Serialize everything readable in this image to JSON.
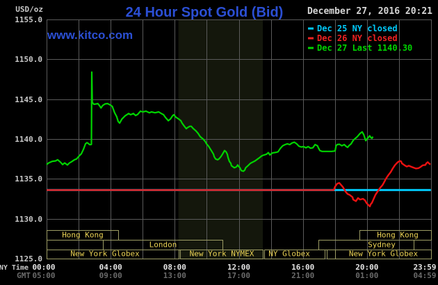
{
  "header": {
    "units_label": "USD/oz",
    "title": "24 Hour Spot Gold (Bid)",
    "datetime": "December 27, 2016 20:21",
    "watermark": "www.kitco.com"
  },
  "legend": [
    {
      "label": "Dec 25 NY closed",
      "color": "#00c8f8"
    },
    {
      "label": "Dec 26 NY closed",
      "color": "#ee2222"
    },
    {
      "label": "Dec 27 Last 1140.30",
      "color": "#00d400"
    }
  ],
  "colors": {
    "background": "#000000",
    "grid": "#5a5a5a",
    "band": "#14170c",
    "session_border": "#9c9c64",
    "session_text": "#ead255",
    "y_label": "#c8c8c8",
    "x_label_ny": "#e4e4e4",
    "x_label_gmt": "#6a6a6a",
    "title": "#2b4fd4",
    "datetime": "#d6d6d6",
    "watermark": "#2b4fd4"
  },
  "axes": {
    "x_row1_label": "NY Time",
    "x_row2_label": "GMT",
    "x_row1_ticks": [
      {
        "label": "00:00",
        "hour": 0
      },
      {
        "label": "04:00",
        "hour": 4
      },
      {
        "label": "08:00",
        "hour": 8
      },
      {
        "label": "12:00",
        "hour": 12
      },
      {
        "label": "16:00",
        "hour": 16
      },
      {
        "label": "20:00",
        "hour": 20
      },
      {
        "label": "23:59",
        "hour": 23.98
      }
    ],
    "x_row2_ticks": [
      {
        "label": "05:00",
        "hour": 0
      },
      {
        "label": "09:00",
        "hour": 4
      },
      {
        "label": "13:00",
        "hour": 8
      },
      {
        "label": "17:00",
        "hour": 12
      },
      {
        "label": "21:00",
        "hour": 16
      },
      {
        "label": "01:00",
        "hour": 20
      },
      {
        "label": "04:59",
        "hour": 23.98
      }
    ],
    "y_ticks": [
      "1155.0",
      "1150.0",
      "1145.0",
      "1140.0",
      "1135.0",
      "1130.0",
      "1125.0"
    ]
  },
  "sessions": {
    "rows": [
      {
        "boxes": [
          {
            "from_hour": 0,
            "to_hour": 4.47,
            "label": "Hong Kong"
          },
          {
            "from_hour": 19.53,
            "to_hour": 24,
            "label": "Hong Kong",
            "label_hour": 21.92
          }
        ]
      },
      {
        "boxes": [
          {
            "from_hour": 0,
            "to_hour": 3.52,
            "label": ""
          },
          {
            "from_hour": 3.52,
            "to_hour": 10.98,
            "label": "London"
          },
          {
            "from_hour": 16.97,
            "to_hour": 22.91,
            "label": "Sydney",
            "label_hour": 20.92
          }
        ]
      },
      {
        "boxes": [
          {
            "from_hour": 0,
            "to_hour": 8.25,
            "label": "New York Globex",
            "label_hour": 3.65
          },
          {
            "from_hour": 8.33,
            "to_hour": 13.5,
            "label": "New York NYMEX"
          },
          {
            "from_hour": 13.58,
            "to_hour": 17.36,
            "label": "NY Globex",
            "label_hour": 15.15
          },
          {
            "from_hour": 17.49,
            "to_hour": 18.01,
            "label": ""
          },
          {
            "from_hour": 18.01,
            "to_hour": 24,
            "label": "New York Globex"
          }
        ]
      }
    ]
  },
  "chart_data": {
    "type": "line",
    "title": "24 Hour Spot Gold (Bid)",
    "xlabel": "NY Time (00:00 - 23:59) / GMT (05:00 - 04:59)",
    "ylabel": "USD/oz",
    "ylim": [
      1125,
      1155
    ],
    "xlim_hours": [
      0,
      24
    ],
    "grid": true,
    "legend_position": "top-right",
    "shaded_region": {
      "from_hour": 8.23,
      "to_hour": 13.5,
      "color": "#14170c",
      "name": "New York NYMEX session"
    },
    "series": [
      {
        "name": "Dec 25 NY closed",
        "color": "#00c8f8",
        "width": 3,
        "points": [
          [
            0,
            1133.6
          ],
          [
            23.99,
            1133.6
          ]
        ]
      },
      {
        "name": "Dec 26 NY closed",
        "color": "#ee1111",
        "width": 2.4,
        "points": [
          [
            0,
            1133.6
          ],
          [
            17.93,
            1133.6
          ],
          [
            18,
            1134
          ],
          [
            18.14,
            1134.4
          ],
          [
            18.27,
            1134.5
          ],
          [
            18.36,
            1134.3
          ],
          [
            18.49,
            1134
          ],
          [
            18.58,
            1133.7
          ],
          [
            18.66,
            1133.4
          ],
          [
            18.79,
            1133.1
          ],
          [
            18.92,
            1133
          ],
          [
            19.1,
            1132.7
          ],
          [
            19.14,
            1132.4
          ],
          [
            19.31,
            1132.2
          ],
          [
            19.44,
            1132.6
          ],
          [
            19.57,
            1132.4
          ],
          [
            19.75,
            1132.5
          ],
          [
            19.88,
            1132.3
          ],
          [
            19.96,
            1132
          ],
          [
            20.1,
            1131.7
          ],
          [
            20.18,
            1131.55
          ],
          [
            20.23,
            1131.8
          ],
          [
            20.31,
            1132
          ],
          [
            20.44,
            1132.6
          ],
          [
            20.53,
            1133
          ],
          [
            20.66,
            1133.4
          ],
          [
            20.83,
            1133.9
          ],
          [
            20.96,
            1134.2
          ],
          [
            21.05,
            1134.5
          ],
          [
            21.18,
            1135
          ],
          [
            21.31,
            1135.4
          ],
          [
            21.48,
            1135.85
          ],
          [
            21.61,
            1136.3
          ],
          [
            21.74,
            1136.7
          ],
          [
            21.83,
            1136.9
          ],
          [
            21.92,
            1137.1
          ],
          [
            22.05,
            1137.25
          ],
          [
            22.13,
            1137.2
          ],
          [
            22.18,
            1136.95
          ],
          [
            22.35,
            1136.7
          ],
          [
            22.48,
            1136.55
          ],
          [
            22.61,
            1136.65
          ],
          [
            22.79,
            1136.5
          ],
          [
            22.92,
            1136.4
          ],
          [
            23.05,
            1136.3
          ],
          [
            23.22,
            1136.35
          ],
          [
            23.35,
            1136.5
          ],
          [
            23.48,
            1136.7
          ],
          [
            23.65,
            1136.75
          ],
          [
            23.7,
            1136.95
          ],
          [
            23.79,
            1137.1
          ],
          [
            23.87,
            1136.95
          ],
          [
            23.96,
            1136.8
          ]
        ]
      },
      {
        "name": "Dec 27 Last 1140.30",
        "color": "#00d400",
        "width": 2.2,
        "points": [
          [
            0,
            1136.8
          ],
          [
            0.13,
            1137
          ],
          [
            0.35,
            1137.2
          ],
          [
            0.56,
            1137.25
          ],
          [
            0.69,
            1137.4
          ],
          [
            0.87,
            1137.1
          ],
          [
            1,
            1136.8
          ],
          [
            1.13,
            1137
          ],
          [
            1.3,
            1136.75
          ],
          [
            1.43,
            1137
          ],
          [
            1.56,
            1137.15
          ],
          [
            1.74,
            1137.4
          ],
          [
            1.87,
            1137.5
          ],
          [
            2,
            1137.8
          ],
          [
            2.17,
            1138.15
          ],
          [
            2.3,
            1138.7
          ],
          [
            2.43,
            1139.4
          ],
          [
            2.52,
            1139.55
          ],
          [
            2.6,
            1139.45
          ],
          [
            2.68,
            1139.3
          ],
          [
            2.78,
            1139.3
          ],
          [
            2.8,
            1139.35
          ],
          [
            2.82,
            1148.4
          ],
          [
            2.85,
            1144.6
          ],
          [
            2.95,
            1144.35
          ],
          [
            3.1,
            1144.4
          ],
          [
            3.2,
            1144.45
          ],
          [
            3.3,
            1144.2
          ],
          [
            3.4,
            1143.9
          ],
          [
            3.5,
            1144.2
          ],
          [
            3.65,
            1144.4
          ],
          [
            3.8,
            1144.45
          ],
          [
            3.95,
            1144.3
          ],
          [
            4.1,
            1144.1
          ],
          [
            4.25,
            1143.3
          ],
          [
            4.38,
            1142.8
          ],
          [
            4.47,
            1142.2
          ],
          [
            4.56,
            1142
          ],
          [
            4.7,
            1142.5
          ],
          [
            4.9,
            1142.9
          ],
          [
            5.12,
            1143.2
          ],
          [
            5.25,
            1143.05
          ],
          [
            5.42,
            1143.2
          ],
          [
            5.56,
            1142.95
          ],
          [
            5.69,
            1143.1
          ],
          [
            5.86,
            1143.5
          ],
          [
            6,
            1143.4
          ],
          [
            6.2,
            1143.5
          ],
          [
            6.42,
            1143.3
          ],
          [
            6.55,
            1143.4
          ],
          [
            6.77,
            1143.3
          ],
          [
            7,
            1143.4
          ],
          [
            7.16,
            1143.2
          ],
          [
            7.3,
            1143.05
          ],
          [
            7.42,
            1142.7
          ],
          [
            7.6,
            1142.3
          ],
          [
            7.73,
            1142.5
          ],
          [
            7.86,
            1142.9
          ],
          [
            7.94,
            1143.05
          ],
          [
            8.07,
            1142.75
          ],
          [
            8.25,
            1142.5
          ],
          [
            8.38,
            1142.3
          ],
          [
            8.46,
            1142
          ],
          [
            8.6,
            1141.6
          ],
          [
            8.72,
            1141.3
          ],
          [
            8.81,
            1141.45
          ],
          [
            8.94,
            1141.6
          ],
          [
            9.03,
            1141.6
          ],
          [
            9.16,
            1141.3
          ],
          [
            9.33,
            1141
          ],
          [
            9.46,
            1140.7
          ],
          [
            9.59,
            1140.3
          ],
          [
            9.77,
            1140
          ],
          [
            9.9,
            1139.7
          ],
          [
            9.98,
            1139.4
          ],
          [
            10.11,
            1139.1
          ],
          [
            10.24,
            1138.7
          ],
          [
            10.33,
            1138.4
          ],
          [
            10.42,
            1138.1
          ],
          [
            10.46,
            1137.8
          ],
          [
            10.55,
            1137.5
          ],
          [
            10.68,
            1137.4
          ],
          [
            10.76,
            1137.5
          ],
          [
            10.89,
            1137.8
          ],
          [
            10.98,
            1138.1
          ],
          [
            11.11,
            1138.55
          ],
          [
            11.2,
            1138.4
          ],
          [
            11.28,
            1138.1
          ],
          [
            11.33,
            1137.65
          ],
          [
            11.41,
            1137.2
          ],
          [
            11.5,
            1136.95
          ],
          [
            11.54,
            1136.65
          ],
          [
            11.72,
            1136.4
          ],
          [
            11.85,
            1136.5
          ],
          [
            11.93,
            1136.75
          ],
          [
            11.98,
            1136.6
          ],
          [
            12.07,
            1136.4
          ],
          [
            12.15,
            1136.05
          ],
          [
            12.28,
            1135.95
          ],
          [
            12.37,
            1136.1
          ],
          [
            12.43,
            1136.4
          ],
          [
            12.57,
            1136.65
          ],
          [
            12.72,
            1136.95
          ],
          [
            12.86,
            1137.1
          ],
          [
            13.01,
            1137.25
          ],
          [
            13.15,
            1137.45
          ],
          [
            13.29,
            1137.65
          ],
          [
            13.44,
            1137.9
          ],
          [
            13.58,
            1138
          ],
          [
            13.73,
            1138.1
          ],
          [
            13.84,
            1138.3
          ],
          [
            13.94,
            1138
          ],
          [
            14.09,
            1138.25
          ],
          [
            14.24,
            1138.3
          ],
          [
            14.38,
            1138.35
          ],
          [
            14.45,
            1138.4
          ],
          [
            14.6,
            1138.85
          ],
          [
            14.74,
            1139.15
          ],
          [
            14.89,
            1139.3
          ],
          [
            15.03,
            1139.4
          ],
          [
            15.18,
            1139.3
          ],
          [
            15.32,
            1139.5
          ],
          [
            15.47,
            1139.6
          ],
          [
            15.61,
            1139.4
          ],
          [
            15.75,
            1139.1
          ],
          [
            15.9,
            1139
          ],
          [
            16.04,
            1139.05
          ],
          [
            16.19,
            1138.9
          ],
          [
            16.33,
            1139.05
          ],
          [
            16.48,
            1138.85
          ],
          [
            16.62,
            1138.9
          ],
          [
            16.76,
            1139.3
          ],
          [
            16.91,
            1139.15
          ],
          [
            16.98,
            1138.85
          ],
          [
            17.06,
            1138.55
          ],
          [
            17.2,
            1138.45
          ],
          [
            17.5,
            1138.45
          ],
          [
            17.8,
            1138.45
          ],
          [
            18.01,
            1138.5
          ],
          [
            18.07,
            1139.15
          ],
          [
            18.14,
            1139.3
          ],
          [
            18.28,
            1139.35
          ],
          [
            18.43,
            1139.15
          ],
          [
            18.58,
            1139.3
          ],
          [
            18.72,
            1139.05
          ],
          [
            18.79,
            1138.95
          ],
          [
            18.87,
            1139.15
          ],
          [
            19.01,
            1139.4
          ],
          [
            19.15,
            1139.85
          ],
          [
            19.4,
            1140.3
          ],
          [
            19.57,
            1140.7
          ],
          [
            19.7,
            1140.9
          ],
          [
            19.8,
            1140.55
          ],
          [
            19.92,
            1139.8
          ],
          [
            20.02,
            1140.05
          ],
          [
            20.17,
            1140.4
          ],
          [
            20.24,
            1140.2
          ],
          [
            20.31,
            1140.1
          ],
          [
            20.37,
            1140.3
          ]
        ]
      }
    ]
  }
}
